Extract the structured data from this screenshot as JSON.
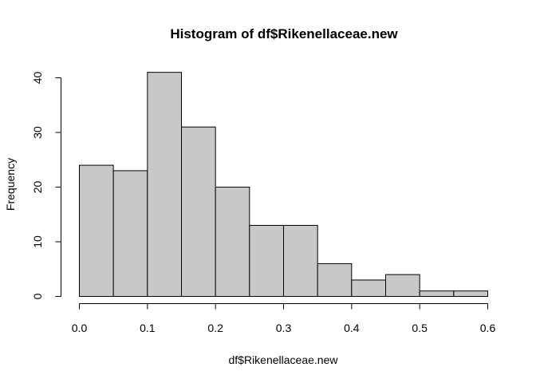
{
  "chart_data": {
    "type": "bar",
    "title": "Histogram of df$Rikenellaceae.new",
    "xlabel": "df$Rikenellaceae.new",
    "ylabel": "Frequency",
    "bin_edges": [
      0.0,
      0.05,
      0.1,
      0.15,
      0.2,
      0.25,
      0.3,
      0.35,
      0.4,
      0.45,
      0.5,
      0.55,
      0.6
    ],
    "values": [
      24,
      23,
      41,
      31,
      20,
      13,
      13,
      6,
      3,
      4,
      1,
      1
    ],
    "xlim": [
      0.0,
      0.6
    ],
    "ylim": [
      0,
      41
    ],
    "x_ticks": [
      "0.0",
      "0.1",
      "0.2",
      "0.3",
      "0.4",
      "0.5",
      "0.6"
    ],
    "y_ticks": [
      "0",
      "10",
      "20",
      "30",
      "40"
    ],
    "bar_color": "#c8c8c8",
    "grid": false
  }
}
